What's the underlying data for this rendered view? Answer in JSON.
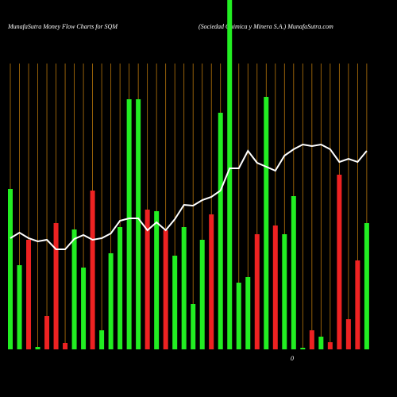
{
  "chart_data": {
    "type": "bar",
    "title": "MunafaSutra  Money Flow  Charts for SQM",
    "subtitle": "(Sociedad Quimica  y Minera  S.A.) MunafaSutra.com",
    "annotation": "0",
    "categories": [
      null,
      null,
      null,
      null,
      null,
      null,
      null,
      null,
      null,
      null,
      null,
      null,
      null,
      null,
      null,
      null,
      null,
      null,
      null,
      null,
      null,
      null,
      null,
      null,
      null,
      null,
      null,
      null,
      null,
      null,
      null,
      null,
      null,
      null,
      null,
      null,
      null,
      null,
      null,
      null
    ],
    "values": [
      202,
      106,
      138,
      3,
      42,
      159,
      8,
      151,
      103,
      200,
      24,
      121,
      154,
      315,
      315,
      176,
      174,
      150,
      118,
      154,
      57,
      138,
      170,
      298,
      440,
      84,
      91,
      145,
      318,
      156,
      145,
      193,
      2,
      24,
      16,
      9,
      220,
      38,
      112,
      159
    ],
    "colors": [
      "#22ee22",
      "#22ee22",
      "#ee2222",
      "#22ee22",
      "#ee2222",
      "#ee2222",
      "#ee2222",
      "#22ee22",
      "#22ee22",
      "#ee2222",
      "#22ee22",
      "#22ee22",
      "#22ee22",
      "#22ee22",
      "#22ee22",
      "#ee2222",
      "#22ee22",
      "#ee2222",
      "#22ee22",
      "#22ee22",
      "#22ee22",
      "#22ee22",
      "#ee2222",
      "#22ee22",
      "#22ee22",
      "#22ee22",
      "#22ee22",
      "#ee2222",
      "#22ee22",
      "#ee2222",
      "#22ee22",
      "#22ee22",
      "#22ee22",
      "#ee2222",
      "#22ee22",
      "#ee2222",
      "#ee2222",
      "#ee2222",
      "#ee2222",
      "#22ee22"
    ],
    "line": {
      "color": "#ffffff",
      "values": [
        140,
        147,
        140,
        136,
        138,
        126,
        126,
        139,
        144,
        138,
        140,
        146,
        162,
        165,
        165,
        150,
        160,
        150,
        164,
        182,
        181,
        188,
        192,
        200,
        228,
        228,
        250,
        235,
        230,
        225,
        244,
        252,
        258,
        256,
        258,
        252,
        236,
        240,
        236,
        250
      ]
    },
    "ylim": [
      0,
      440
    ],
    "grid_color": "#b8760b"
  }
}
